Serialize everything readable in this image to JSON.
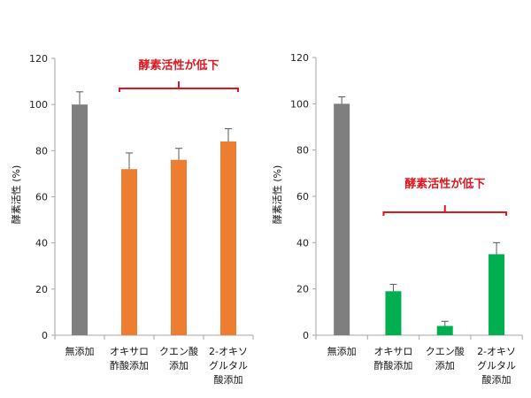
{
  "chart_data": [
    {
      "type": "bar",
      "title": "",
      "xlabel": "",
      "ylabel": "酵素活性 (%)",
      "ylim": [
        0,
        120
      ],
      "yticks": [
        0,
        20,
        40,
        60,
        80,
        100,
        120
      ],
      "categories": [
        [
          "無添加"
        ],
        [
          "オキサロ",
          "酢酸添加"
        ],
        [
          "クエン酸",
          "添加"
        ],
        [
          "2-オキソ",
          "グルタル",
          "酸添加"
        ]
      ],
      "values": [
        100,
        72,
        76,
        84
      ],
      "errors": [
        5.5,
        7,
        5,
        5.5
      ],
      "colors": [
        "#7f7f7f",
        "#ed7d31",
        "#ed7d31",
        "#ed7d31"
      ],
      "annotation": {
        "text": "酵素活性が低下",
        "bracket_from": 1,
        "bracket_to": 3,
        "color": "#e0161e"
      },
      "grid": false
    },
    {
      "type": "bar",
      "title": "",
      "xlabel": "",
      "ylabel": "酵素活性 (%)",
      "ylim": [
        0,
        120
      ],
      "yticks": [
        0,
        20,
        40,
        60,
        80,
        100,
        120
      ],
      "categories": [
        [
          "無添加"
        ],
        [
          "オキサロ",
          "酢酸添加"
        ],
        [
          "クエン酸",
          "添加"
        ],
        [
          "2-オキソ",
          "グルタル",
          "酸添加"
        ]
      ],
      "values": [
        100,
        19,
        4,
        35
      ],
      "errors": [
        3,
        3,
        2,
        5
      ],
      "colors": [
        "#7f7f7f",
        "#00b050",
        "#00b050",
        "#00b050"
      ],
      "annotation": {
        "text": "酵素活性が低下",
        "bracket_from": 1,
        "bracket_to": 3,
        "color": "#e0161e"
      },
      "grid": false
    }
  ]
}
